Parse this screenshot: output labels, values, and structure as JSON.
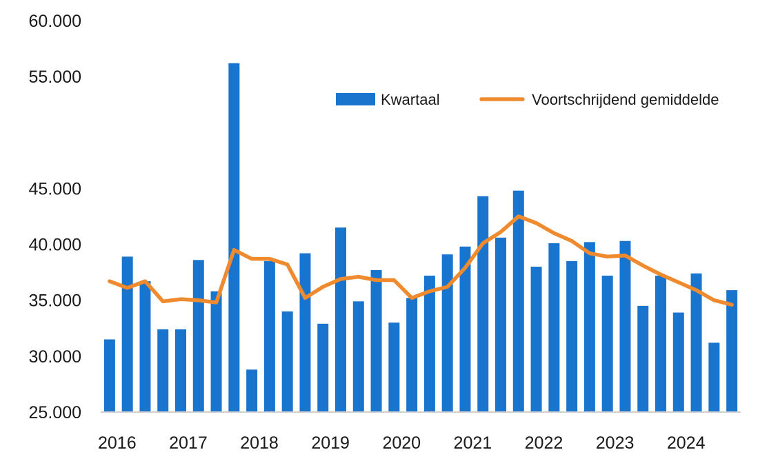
{
  "chart_data": {
    "type": "bar",
    "title": "",
    "xlabel": "",
    "ylabel": "",
    "ylim": [
      25000,
      60000
    ],
    "yticks": [
      25000,
      30000,
      35000,
      40000,
      45000,
      55000,
      60000
    ],
    "ytick_labels": [
      "25.000",
      "30.000",
      "35.000",
      "40.000",
      "45.000",
      "55.000",
      "60.000"
    ],
    "year_labels": [
      "2016",
      "2017",
      "2018",
      "2019",
      "2020",
      "2021",
      "2022",
      "2023",
      "2024"
    ],
    "legend_position": "top-right",
    "series": [
      {
        "name": "Kwartaal",
        "type": "bar",
        "color": "#1874cd",
        "values": [
          31500,
          38900,
          36700,
          32400,
          32400,
          38600,
          35800,
          56200,
          28800,
          38500,
          34000,
          39200,
          32900,
          41500,
          34900,
          37700,
          33000,
          35200,
          37200,
          39100,
          39800,
          44300,
          40600,
          44800,
          38000,
          40100,
          38500,
          40200,
          37200,
          40300,
          34500,
          37200,
          33900,
          37400,
          31200,
          35900
        ]
      },
      {
        "name": "Voortschrijdend gemiddelde",
        "type": "line",
        "color": "#f08a2e",
        "values": [
          36700,
          36100,
          36700,
          34900,
          35100,
          35000,
          34800,
          39500,
          38700,
          38700,
          38200,
          35200,
          36200,
          36900,
          37100,
          36800,
          36800,
          35200,
          35800,
          36200,
          37900,
          40100,
          41100,
          42500,
          41900,
          41000,
          40300,
          39200,
          38900,
          39000,
          38100,
          37300,
          36600,
          35900,
          35000,
          34600
        ]
      }
    ]
  }
}
